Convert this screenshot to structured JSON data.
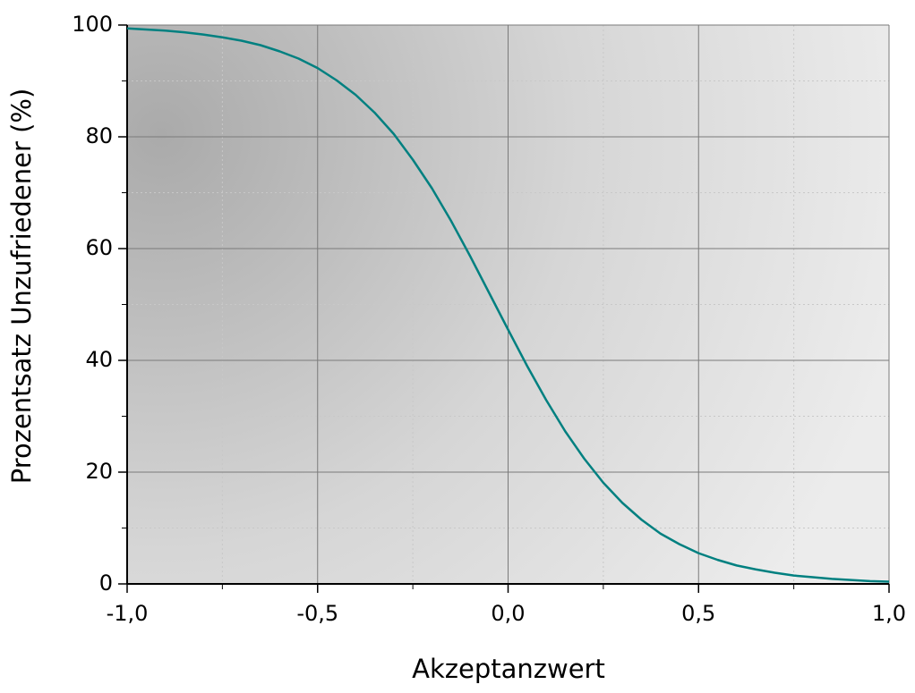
{
  "chart_data": {
    "type": "line",
    "xlabel": "Akzeptanzwert",
    "ylabel": "Prozentsatz Unzufriedener (%)",
    "x": [
      -1.0,
      -0.95,
      -0.9,
      -0.85,
      -0.8,
      -0.75,
      -0.7,
      -0.65,
      -0.6,
      -0.55,
      -0.5,
      -0.45,
      -0.4,
      -0.35,
      -0.3,
      -0.25,
      -0.2,
      -0.15,
      -0.1,
      -0.05,
      0.0,
      0.05,
      0.1,
      0.15,
      0.2,
      0.25,
      0.3,
      0.35,
      0.4,
      0.45,
      0.5,
      0.55,
      0.6,
      0.65,
      0.7,
      0.75,
      0.8,
      0.85,
      0.9,
      0.95,
      1.0
    ],
    "series": [
      {
        "color": "#008080",
        "values": [
          99.4,
          99.2,
          99.0,
          98.7,
          98.3,
          97.8,
          97.2,
          96.4,
          95.3,
          94.0,
          92.3,
          90.1,
          87.5,
          84.3,
          80.5,
          75.9,
          70.8,
          65.0,
          58.7,
          52.1,
          45.5,
          39.0,
          32.9,
          27.3,
          22.4,
          18.1,
          14.5,
          11.5,
          9.0,
          7.1,
          5.5,
          4.3,
          3.3,
          2.6,
          2.0,
          1.5,
          1.2,
          0.9,
          0.7,
          0.5,
          0.4
        ]
      }
    ],
    "xlim": [
      -1,
      1
    ],
    "xticks": [
      {
        "value": -1,
        "label": "-1,0"
      },
      {
        "value": -0.5,
        "label": "-0,5"
      },
      {
        "value": 0,
        "label": "0,0"
      },
      {
        "value": 0.5,
        "label": "0,5"
      },
      {
        "value": 1,
        "label": "1,0"
      }
    ],
    "ylim": [
      0,
      100
    ],
    "yticks": [
      0,
      20,
      40,
      60,
      80,
      100
    ],
    "grid": true
  }
}
